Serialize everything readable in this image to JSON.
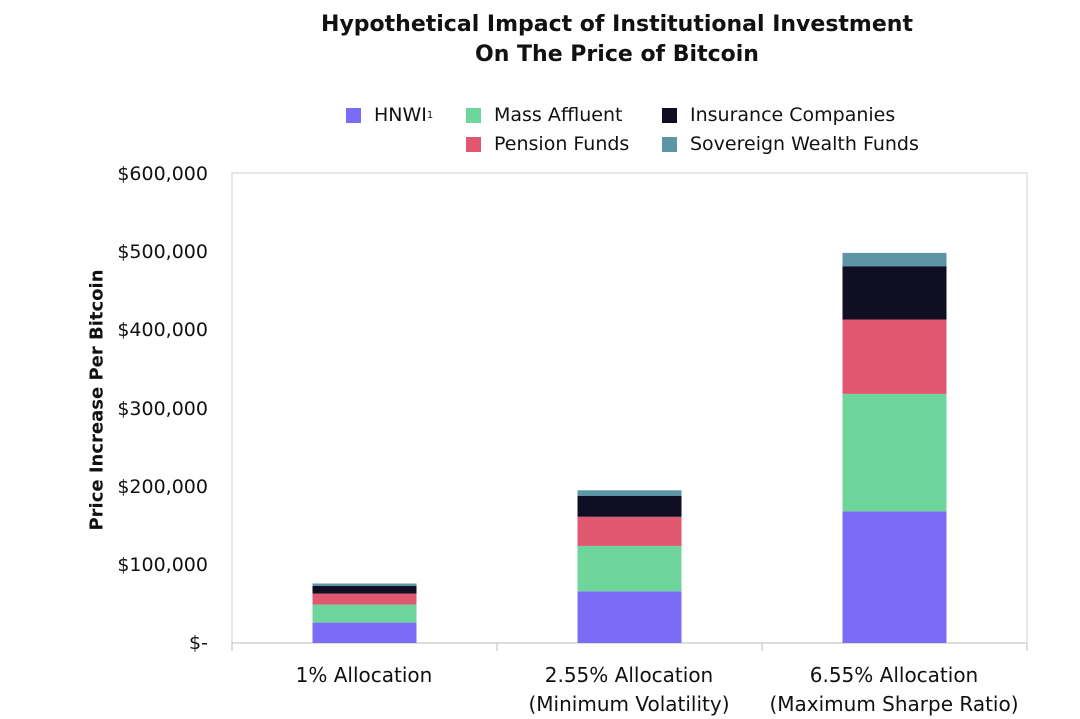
{
  "chart_data": {
    "type": "bar",
    "stacked": true,
    "title_lines": [
      "Hypothetical Impact of Institutional Investment",
      "On The Price of Bitcoin"
    ],
    "ylabel": "Price Increase Per Bitcoin",
    "xlabel": "",
    "ylim": [
      0,
      600000
    ],
    "yticks": [
      {
        "value": 0,
        "label": "$-"
      },
      {
        "value": 100000,
        "label": "$100,000"
      },
      {
        "value": 200000,
        "label": "$200,000"
      },
      {
        "value": 300000,
        "label": "$300,000"
      },
      {
        "value": 400000,
        "label": "$400,000"
      },
      {
        "value": 500000,
        "label": "$500,000"
      },
      {
        "value": 600000,
        "label": "$600,000"
      }
    ],
    "categories": [
      {
        "line1": "1% Allocation",
        "line2": ""
      },
      {
        "line1": "2.55% Allocation",
        "line2": "(Minimum Volatility)"
      },
      {
        "line1": "6.55% Allocation",
        "line2": "(Maximum Sharpe Ratio)"
      }
    ],
    "legend_position": "top",
    "grid": false,
    "series": [
      {
        "name": "HNWI",
        "sup": "1",
        "color": "#7B6CF6",
        "values": [
          26000,
          66000,
          168000
        ]
      },
      {
        "name": "Mass Affluent",
        "color": "#6ED69A",
        "values": [
          23000,
          58000,
          150000
        ]
      },
      {
        "name": "Pension Funds",
        "color": "#E05870",
        "values": [
          14000,
          37000,
          95000
        ]
      },
      {
        "name": "Insurance Companies",
        "color": "#0F0E22",
        "values": [
          10000,
          27000,
          68000
        ]
      },
      {
        "name": "Sovereign Wealth Funds",
        "color": "#5B95A6",
        "values": [
          3000,
          7000,
          17000
        ]
      }
    ]
  }
}
